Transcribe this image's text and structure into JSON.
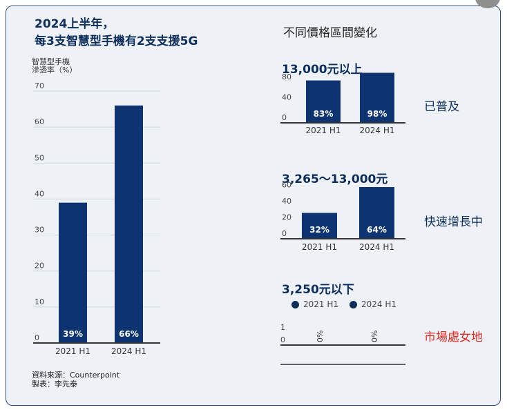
{
  "title_line1": "2024上半年，",
  "title_line2": "每3支智慧型手機有2支支援5G",
  "ylabel_line1": "智慧型手機",
  "ylabel_line2": "滲透率（%）",
  "source_line1": "資料來源：Counterpoint",
  "source_line2": "製表：李先泰",
  "right_title": "不同價格區間變化",
  "colors": {
    "bar": "#0d3470",
    "text_dark": "#0d2e5a",
    "red": "#e02b20"
  },
  "chart_data": [
    {
      "type": "bar",
      "title": "",
      "categories": [
        "2021 H1",
        "2024 H1"
      ],
      "values": [
        39,
        66
      ],
      "data_labels": [
        "39%",
        "66%"
      ],
      "ylabel": "智慧型手機 滲透率（%）",
      "yticks": [
        "0",
        "10",
        "20",
        "30",
        "40",
        "50",
        "60",
        "70"
      ],
      "ylim": [
        0,
        70
      ],
      "grid": true
    },
    {
      "type": "bar",
      "title": "13,000元以上",
      "categories": [
        "2021 H1",
        "2024 H1"
      ],
      "values": [
        83,
        98
      ],
      "data_labels": [
        "83%",
        "98%"
      ],
      "yticks": [
        "0",
        "40",
        "80"
      ],
      "ylim": [
        0,
        100
      ],
      "status": "已普及"
    },
    {
      "type": "bar",
      "title": "3,265～13,000元",
      "categories": [
        "2021 H1",
        "2024 H1"
      ],
      "values": [
        32,
        64
      ],
      "data_labels": [
        "32%",
        "64%"
      ],
      "yticks": [
        "0",
        "20",
        "40",
        "60"
      ],
      "ylim": [
        0,
        70
      ],
      "status": "快速增長中"
    },
    {
      "type": "bar",
      "title": "3,250元以下",
      "categories": [
        "2021 H1",
        "2024 H1"
      ],
      "values": [
        0,
        0
      ],
      "data_labels": [
        "0%",
        "0%"
      ],
      "yticks": [
        "0",
        "1"
      ],
      "ylim": [
        0,
        1
      ],
      "legend": [
        "2021 H1",
        "2024 H1"
      ],
      "status": "市場處女地"
    }
  ]
}
